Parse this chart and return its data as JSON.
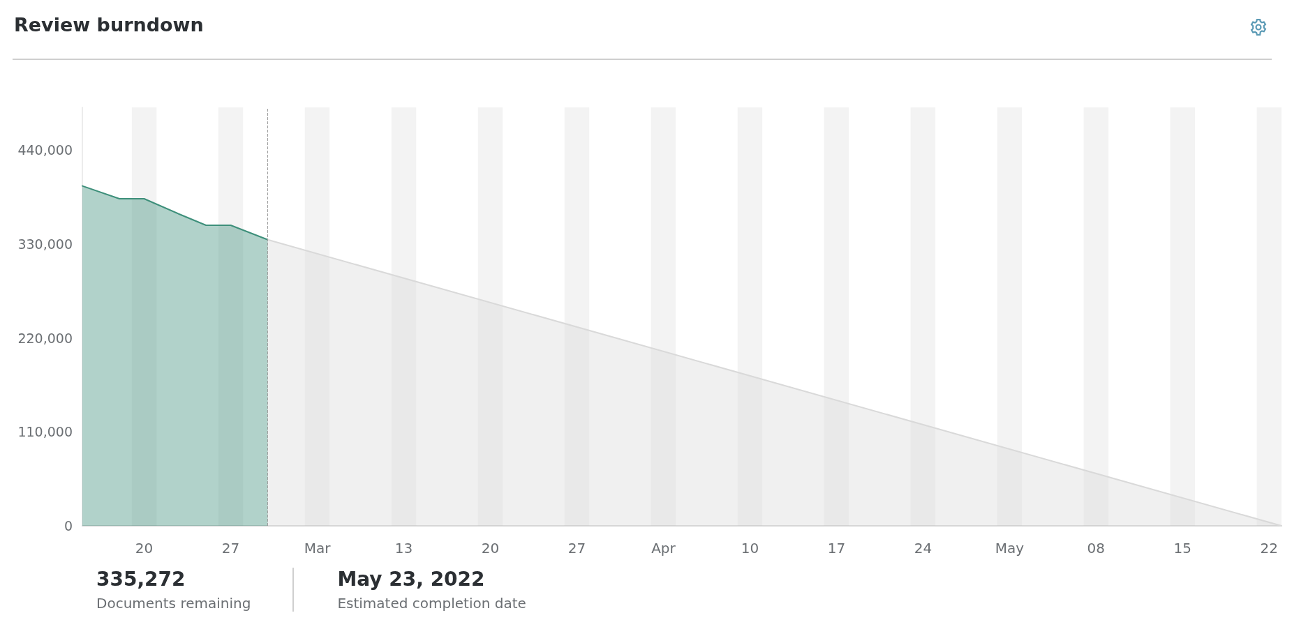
{
  "chart_data": {
    "type": "area",
    "title": "Review burndown",
    "x": [
      "2022-02-15",
      "2022-02-18",
      "2022-02-20",
      "2022-02-23",
      "2022-02-25",
      "2022-02-27",
      "2022-03-02"
    ],
    "series": [
      {
        "color": "#3d8f7a",
        "values": [
          398000,
          383000,
          383000,
          364000,
          352000,
          352000,
          335000
        ]
      },
      {
        "color": "#d9d9d9",
        "x": [
          "2022-03-02",
          "2022-05-23"
        ],
        "values": [
          335000,
          0
        ]
      }
    ],
    "xlim": [
      "2022-02-15",
      "2022-05-23"
    ],
    "xticks": [
      {
        "value": "2022-02-20",
        "label": "20"
      },
      {
        "value": "2022-02-27",
        "label": "27"
      },
      {
        "value": "2022-03-06",
        "label": "Mar"
      },
      {
        "value": "2022-03-13",
        "label": "13"
      },
      {
        "value": "2022-03-20",
        "label": "20"
      },
      {
        "value": "2022-03-27",
        "label": "27"
      },
      {
        "value": "2022-04-03",
        "label": "Apr"
      },
      {
        "value": "2022-04-10",
        "label": "10"
      },
      {
        "value": "2022-04-17",
        "label": "17"
      },
      {
        "value": "2022-04-24",
        "label": "24"
      },
      {
        "value": "2022-05-01",
        "label": "May"
      },
      {
        "value": "2022-05-08",
        "label": "08"
      },
      {
        "value": "2022-05-15",
        "label": "15"
      },
      {
        "value": "2022-05-22",
        "label": "22"
      }
    ],
    "ylim": [
      0,
      490000
    ],
    "yticks": [
      0,
      {
        "value": 110000,
        "label": "110,000"
      },
      {
        "value": 220000,
        "label": "220,000"
      },
      {
        "value": 330000,
        "label": "330,000"
      },
      {
        "value": 440000,
        "label": "440,000"
      }
    ],
    "grid": false,
    "marker": "none",
    "ref_lines": [
      {
        "axis": "x",
        "value": "2022-03-02",
        "color": "#9e9e9e",
        "line_style": "dashed"
      }
    ],
    "bands": [
      {
        "axis": "x",
        "from": "2022-02-19",
        "to": "2022-02-21",
        "color": "#8c8c8c"
      },
      {
        "axis": "x",
        "from": "2022-02-26",
        "to": "2022-02-28",
        "color": "#8c8c8c"
      },
      {
        "axis": "x",
        "from": "2022-03-05",
        "to": "2022-03-07",
        "color": "#8c8c8c"
      },
      {
        "axis": "x",
        "from": "2022-03-12",
        "to": "2022-03-14",
        "color": "#8c8c8c"
      },
      {
        "axis": "x",
        "from": "2022-03-19",
        "to": "2022-03-21",
        "color": "#8c8c8c"
      },
      {
        "axis": "x",
        "from": "2022-03-26",
        "to": "2022-03-28",
        "color": "#8c8c8c"
      },
      {
        "axis": "x",
        "from": "2022-04-02",
        "to": "2022-04-04",
        "color": "#8c8c8c"
      },
      {
        "axis": "x",
        "from": "2022-04-09",
        "to": "2022-04-11",
        "color": "#8c8c8c"
      },
      {
        "axis": "x",
        "from": "2022-04-16",
        "to": "2022-04-18",
        "color": "#8c8c8c"
      },
      {
        "axis": "x",
        "from": "2022-04-23",
        "to": "2022-04-25",
        "color": "#8c8c8c"
      },
      {
        "axis": "x",
        "from": "2022-04-30",
        "to": "2022-05-02",
        "color": "#8c8c8c"
      },
      {
        "axis": "x",
        "from": "2022-05-07",
        "to": "2022-05-09",
        "color": "#8c8c8c"
      },
      {
        "axis": "x",
        "from": "2022-05-14",
        "to": "2022-05-16",
        "color": "#8c8c8c"
      },
      {
        "axis": "x",
        "from": "2022-05-21",
        "to": "2022-05-23",
        "color": "#8c8c8c"
      }
    ],
    "annotations": [
      "335,272",
      "Documents remaining",
      "May 23, 2022",
      "Estimated completion date"
    ]
  }
}
